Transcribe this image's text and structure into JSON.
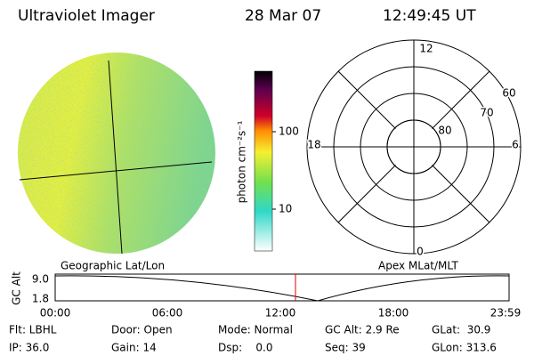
{
  "header": {
    "instrument": "Ultraviolet Imager",
    "date": "28 Mar 07",
    "time": "12:49:45 UT"
  },
  "colorbar": {
    "label": "photon cm⁻²s⁻¹",
    "ticks": [
      100,
      10
    ]
  },
  "polar": {
    "mlt_labels": [
      12,
      18,
      6,
      0
    ],
    "lat_labels": [
      60,
      70,
      80
    ]
  },
  "strip": {
    "left_label": "Geographic Lat/Lon",
    "right_label": "Apex MLat/MLT",
    "axis_label": "GC Alt",
    "y_labels": [
      "9.0",
      "1.8"
    ],
    "time_labels": [
      "00:00",
      "06:00",
      "12:00",
      "18:00",
      "23:59"
    ]
  },
  "status": [
    [
      "Flt: LBHL",
      "Door: Open",
      "Mode: Normal",
      "GC Alt: 2.9 Re",
      "GLat:  30.9"
    ],
    [
      "IP: 36.0",
      "Gain: 14",
      "Dsp:    0.0",
      "Seq: 39",
      "GLon: 313.6"
    ]
  ]
}
